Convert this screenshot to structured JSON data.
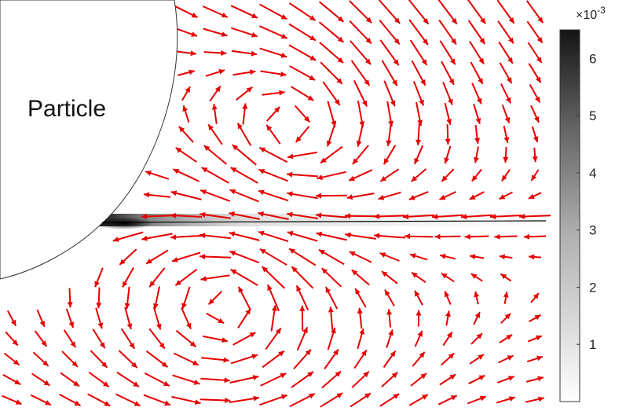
{
  "chart_data": {
    "type": "vector-field",
    "annotation": "Particle",
    "colorbar": {
      "exponent_label": "×10",
      "exponent": "-3",
      "ticks": [
        1,
        2,
        3,
        4,
        5,
        6
      ],
      "range": [
        0,
        6.5
      ],
      "colormap": "gray (white to black)"
    },
    "arrow_color": "#e60000",
    "background_color": "#ffffff"
  }
}
